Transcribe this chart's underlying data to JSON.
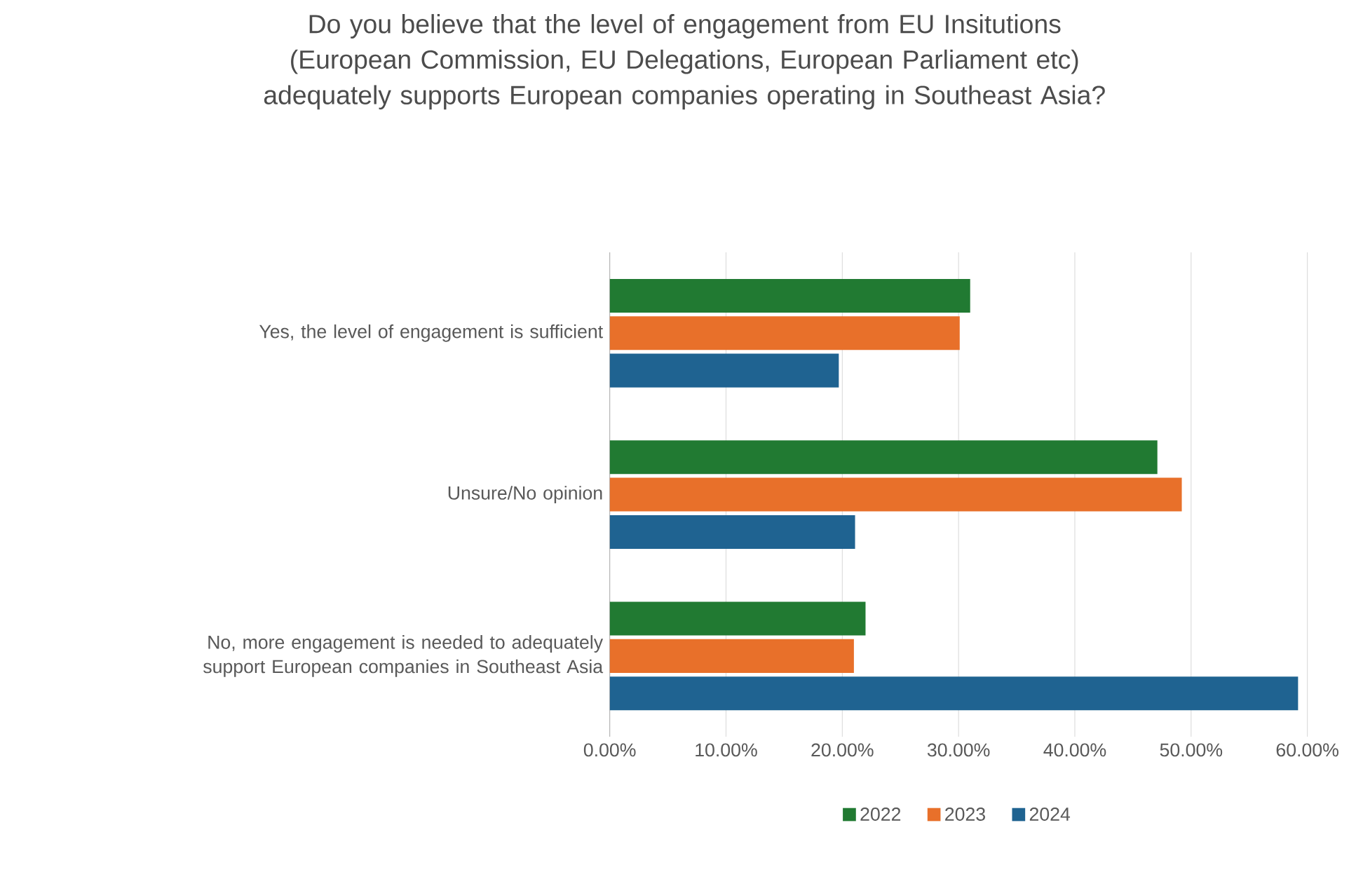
{
  "chart_data": {
    "type": "bar",
    "orientation": "horizontal",
    "title": "Do you believe that the level of engagement from EU Insitutions (European Commission, EU Delegations, European Parliament etc) adequately supports European companies operating in Southeast Asia?",
    "categories": [
      "Yes, the level of engagement is sufficient",
      "Unsure/No opinion",
      "No, more engagement is needed to adequately support European companies in Southeast Asia"
    ],
    "series": [
      {
        "name": "2022",
        "color": "#217a32",
        "values": [
          31.0,
          47.1,
          22.0
        ]
      },
      {
        "name": "2023",
        "color": "#e8702a",
        "values": [
          30.1,
          49.2,
          21.0
        ]
      },
      {
        "name": "2024",
        "color": "#1f6391",
        "values": [
          19.7,
          21.1,
          59.2
        ]
      }
    ],
    "xlim": [
      0,
      60
    ],
    "xticks": [
      {
        "value": 0,
        "label": "0.00%"
      },
      {
        "value": 10,
        "label": "10.00%"
      },
      {
        "value": 20,
        "label": "20.00%"
      },
      {
        "value": 30,
        "label": "30.00%"
      },
      {
        "value": 40,
        "label": "40.00%"
      },
      {
        "value": 50,
        "label": "50.00%"
      },
      {
        "value": 60,
        "label": "60.00%"
      }
    ],
    "grid": "x",
    "legend": "bottom"
  }
}
